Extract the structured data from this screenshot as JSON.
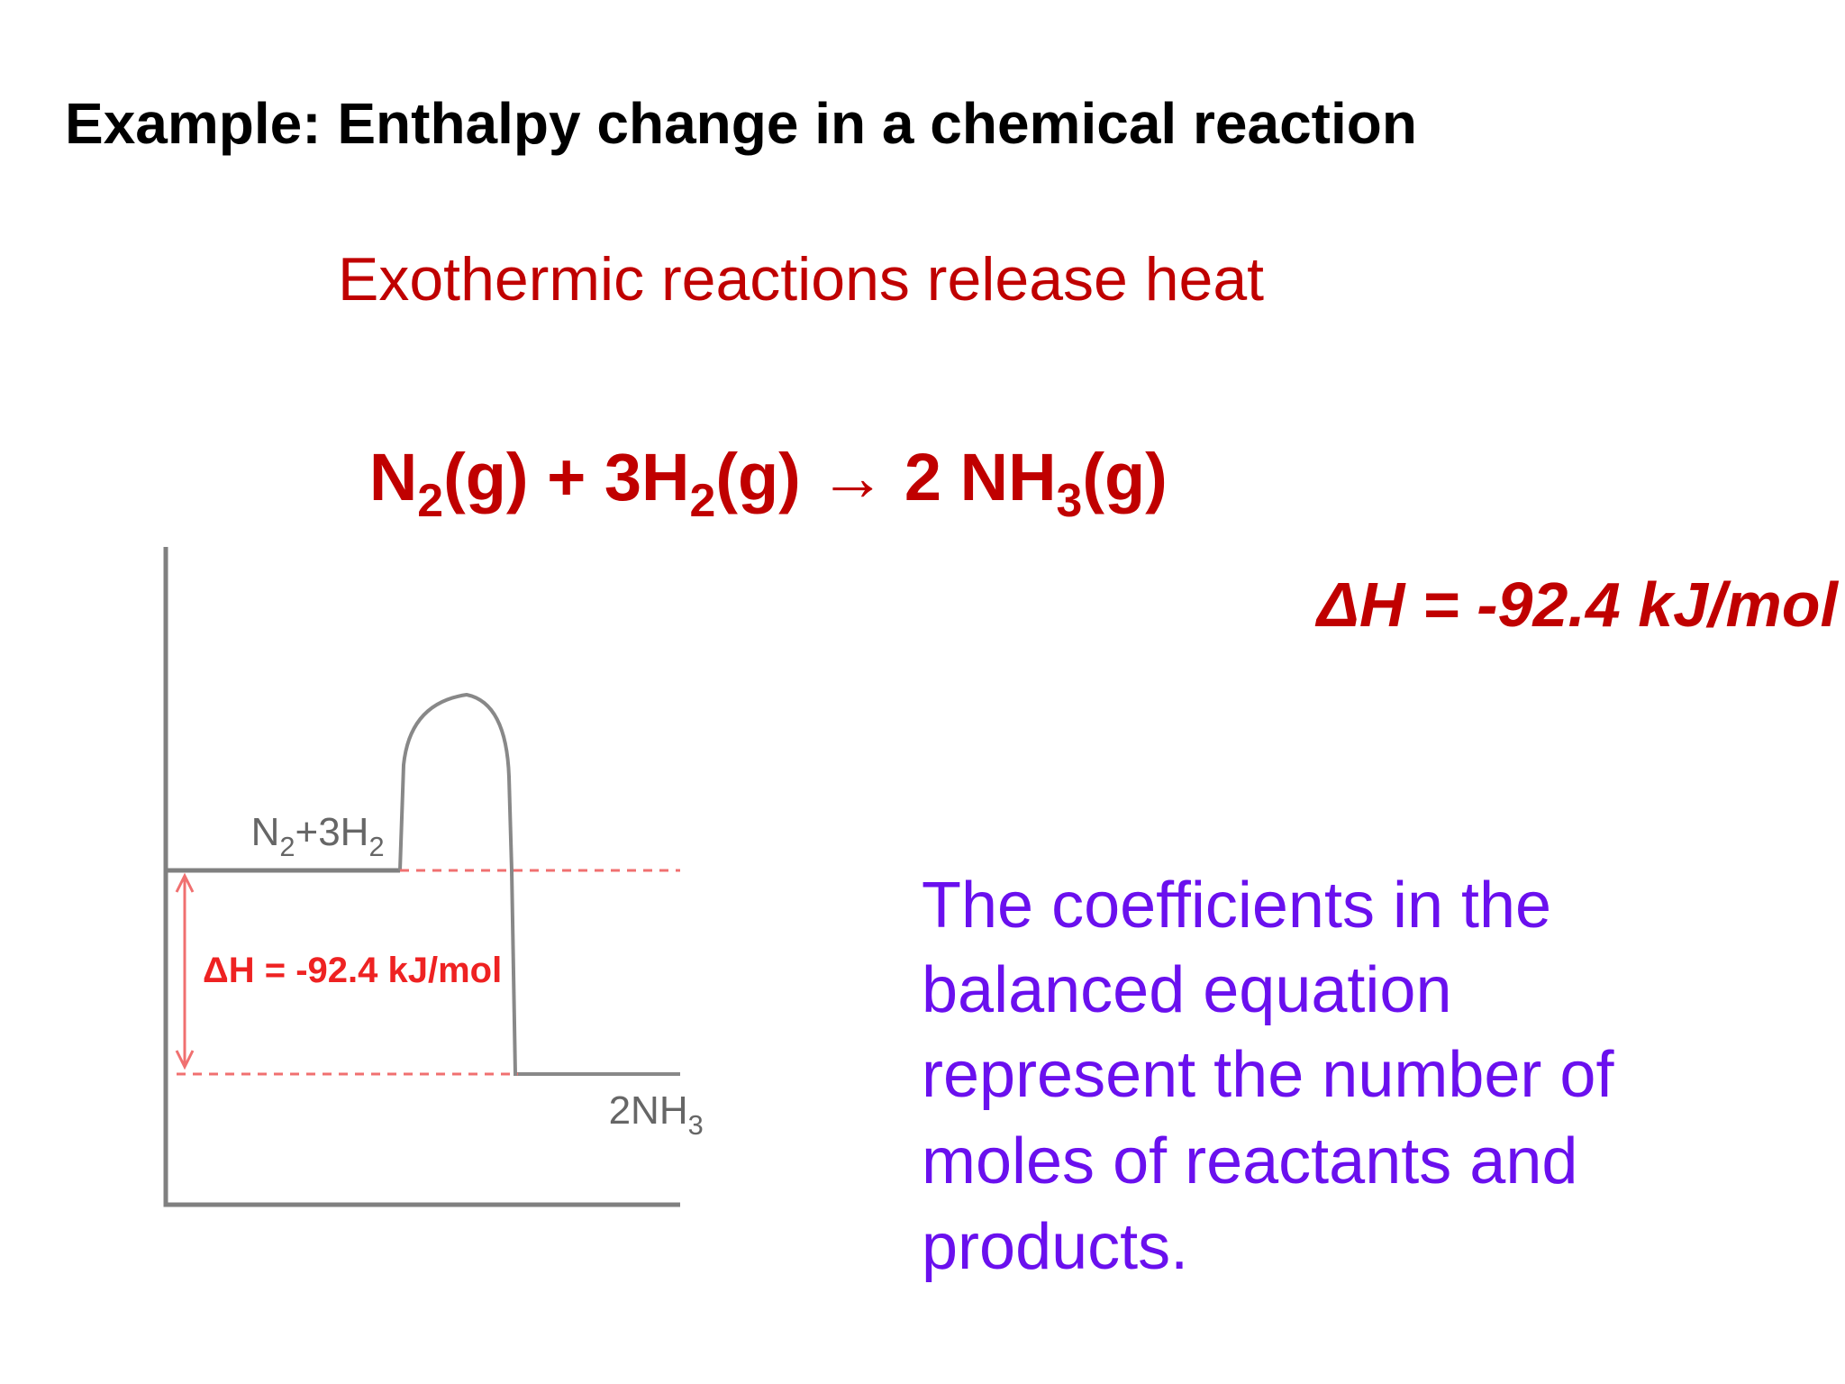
{
  "header": {
    "title": "Example: Enthalpy change in a chemical reaction"
  },
  "subtitle": "Exothermic reactions release heat",
  "equation": {
    "parts": [
      "N",
      "2",
      "(g) + 3H",
      "2",
      "(g) → 2 NH",
      "3",
      "(g)"
    ]
  },
  "enthalpy": "ΔH = -92.4 kJ/mol",
  "diagram": {
    "reactants": [
      "N",
      "2",
      "+3H",
      "2"
    ],
    "delta_label": "ΔH = -92.4 kJ/mol",
    "products": [
      "2NH",
      "3"
    ]
  },
  "body": {
    "lines": [
      "The coefficients in the",
      "balanced equation",
      "represent the number of",
      "moles of reactants and",
      "products."
    ]
  }
}
